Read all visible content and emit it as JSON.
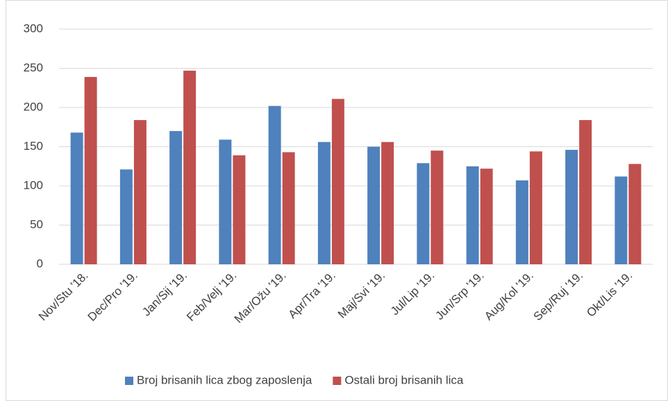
{
  "chart_data": {
    "type": "bar",
    "categories": [
      "Nov/Stu '18.",
      "Dec/Pro '19.",
      "Jan/Sij '19.",
      "Feb/Velj '19.",
      "Mar/Ožu '19.",
      "Apr/Tra '19.",
      "Maj/Svi '19.",
      "Jul/Lip '19.",
      "Jun/Srp '19.",
      "Aug/Kol '19.",
      "Sep/Ruj '19.",
      "Okt/Lis '19."
    ],
    "series": [
      {
        "name": "Broj brisanih lica zbog zaposlenja",
        "color": "#4f81bd",
        "values": [
          168,
          121,
          170,
          159,
          202,
          156,
          150,
          129,
          125,
          107,
          146,
          112
        ]
      },
      {
        "name": "Ostali broj brisanih lica",
        "color": "#c0504d",
        "values": [
          239,
          184,
          247,
          139,
          143,
          211,
          156,
          145,
          122,
          144,
          184,
          128
        ]
      }
    ],
    "ylim": [
      0,
      300
    ],
    "yticks": [
      0,
      50,
      100,
      150,
      200,
      250,
      300
    ],
    "grid": true,
    "legend": "bottom"
  }
}
